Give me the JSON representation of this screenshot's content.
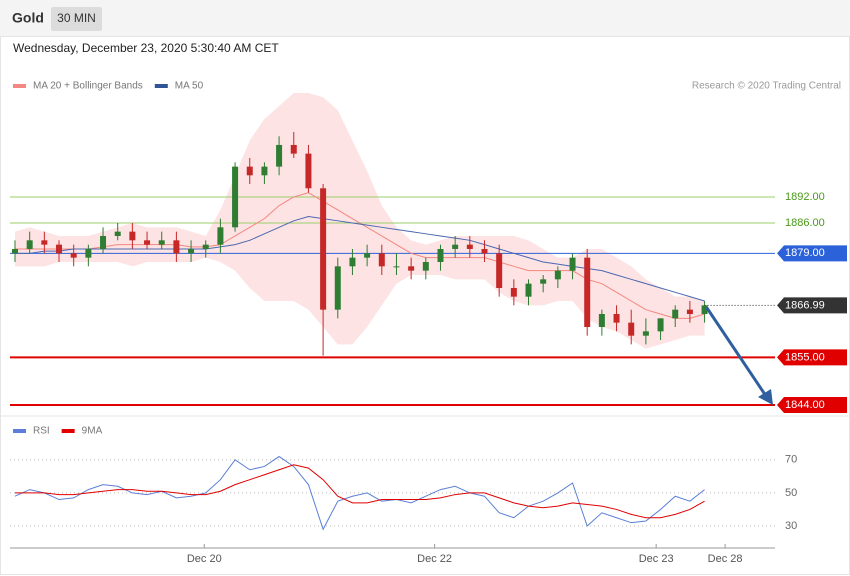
{
  "header": {
    "title": "Gold",
    "interval": "30 MIN"
  },
  "timestamp": "Wednesday, December 23, 2020 5:30:40 AM CET",
  "source": "Research © 2020 Trading Central",
  "chart_data": [
    {
      "type": "candlestick",
      "legend": [
        {
          "name": "MA 20 + Bollinger Bands",
          "color": "#f4877f"
        },
        {
          "name": "MA 50",
          "color": "#2f5597"
        }
      ],
      "open": [
        1879,
        1880,
        1882,
        1881,
        1879,
        1878,
        1880,
        1883,
        1884,
        1882,
        1881,
        1882,
        1879,
        1880,
        1881,
        1885,
        1899,
        1897,
        1899,
        1904,
        1902,
        1894,
        1866,
        1876,
        1878,
        1879,
        1876,
        1876,
        1875,
        1877,
        1880,
        1881,
        1880,
        1879,
        1871,
        1869,
        1872,
        1873,
        1875,
        1878,
        1862,
        1865,
        1863,
        1860,
        1861,
        1864,
        1866,
        1865
      ],
      "high": [
        1882,
        1884,
        1884,
        1882,
        1881,
        1881,
        1885,
        1886,
        1886,
        1884,
        1884,
        1884,
        1882,
        1882,
        1887,
        1900,
        1901,
        1900,
        1906,
        1907,
        1904,
        1895,
        1878,
        1880,
        1881,
        1881,
        1879,
        1878,
        1878,
        1881,
        1883,
        1883,
        1882,
        1881,
        1873,
        1873,
        1874,
        1876,
        1879,
        1880,
        1866,
        1867,
        1866,
        1864,
        1864,
        1867,
        1868,
        1868
      ],
      "low": [
        1877,
        1879,
        1879,
        1877,
        1876,
        1876,
        1879,
        1882,
        1880,
        1880,
        1880,
        1877,
        1877,
        1878,
        1879,
        1884,
        1895,
        1895,
        1897,
        1901,
        1893,
        1855.4,
        1864,
        1874,
        1876,
        1874,
        1874,
        1873,
        1873,
        1875,
        1878,
        1878,
        1877,
        1869,
        1867,
        1867,
        1870,
        1871,
        1873,
        1860,
        1860,
        1861,
        1858,
        1858,
        1859,
        1862,
        1863,
        1863
      ],
      "close": [
        1880,
        1882,
        1881,
        1879,
        1878,
        1880,
        1883,
        1884,
        1882,
        1881,
        1882,
        1879,
        1880,
        1881,
        1885,
        1899,
        1897,
        1899,
        1904,
        1902,
        1894,
        1866,
        1876,
        1878,
        1879,
        1876,
        1876,
        1875,
        1877,
        1880,
        1881,
        1880,
        1879,
        1871,
        1869,
        1872,
        1873,
        1875,
        1878,
        1862,
        1865,
        1863,
        1860,
        1861,
        1864,
        1866,
        1865,
        1867
      ],
      "ma20": [
        1880,
        1880,
        1880,
        1880,
        1880,
        1880,
        1880.5,
        1881,
        1881,
        1881,
        1881,
        1881,
        1880.5,
        1880.5,
        1881,
        1883,
        1885,
        1887,
        1890,
        1892,
        1893,
        1891,
        1889,
        1887,
        1885,
        1883,
        1881,
        1879,
        1878,
        1878,
        1878,
        1878,
        1878,
        1877,
        1876,
        1875,
        1875,
        1875,
        1875,
        1873,
        1872,
        1870,
        1868,
        1866,
        1865,
        1864,
        1864,
        1865
      ],
      "bb_upper": [
        1884,
        1885,
        1884,
        1883,
        1883,
        1883,
        1884,
        1885,
        1886,
        1885,
        1885,
        1885,
        1884,
        1883,
        1889,
        1897,
        1905,
        1910,
        1913,
        1916,
        1916,
        1915,
        1912,
        1905,
        1898,
        1890,
        1885,
        1882,
        1881,
        1882,
        1883,
        1883,
        1883,
        1883,
        1883,
        1882,
        1880,
        1878,
        1878,
        1880,
        1880,
        1878,
        1876,
        1873,
        1871,
        1869,
        1869,
        1868
      ],
      "bb_lower": [
        1876,
        1876,
        1876,
        1877,
        1877,
        1877,
        1877,
        1877,
        1876,
        1877,
        1877,
        1877,
        1877,
        1878,
        1877,
        1875,
        1871,
        1868,
        1868,
        1868,
        1866,
        1862,
        1858,
        1858,
        1862,
        1867,
        1872,
        1874,
        1874,
        1874,
        1873,
        1873,
        1873,
        1870,
        1868,
        1867,
        1867,
        1868,
        1868,
        1864,
        1862,
        1861,
        1859,
        1857,
        1858,
        1859,
        1860,
        1860
      ],
      "ma50": [
        1879,
        1879,
        1879.5,
        1879.5,
        1880,
        1880,
        1880,
        1880,
        1880,
        1880,
        1880,
        1880,
        1880,
        1880,
        1880.5,
        1881,
        1882,
        1883.5,
        1885,
        1886.5,
        1887.5,
        1887,
        1886.5,
        1886,
        1885.5,
        1885,
        1884.5,
        1884,
        1883.5,
        1883,
        1882.5,
        1882,
        1881,
        1880,
        1879,
        1878,
        1877,
        1876.5,
        1876,
        1875.5,
        1875,
        1874,
        1873,
        1872,
        1871,
        1870,
        1869,
        1868
      ],
      "levels": [
        {
          "value": 1892,
          "label": "1892.00",
          "color": "#9acd6a",
          "boxed": false
        },
        {
          "value": 1886,
          "label": "1886.00",
          "color": "#9acd6a",
          "boxed": false
        },
        {
          "value": 1879,
          "label": "1879.00",
          "color": "#2b62d9",
          "boxed": true
        },
        {
          "value": 1855,
          "label": "1855.00",
          "color": "#e00000",
          "boxed": true
        },
        {
          "value": 1844,
          "label": "1844.00",
          "color": "#e00000",
          "boxed": true
        }
      ],
      "last": {
        "value": 1866.99,
        "label": "1866.99",
        "color": "#333333"
      },
      "xlim": [
        0,
        51.8
      ],
      "ylim": [
        1841.7,
        1923.6
      ]
    },
    {
      "type": "line",
      "series": [
        {
          "name": "RSI",
          "color": "#5b7fd6",
          "values": [
            48,
            52,
            50,
            46,
            47,
            52,
            55,
            54,
            50,
            49,
            51,
            47,
            48,
            50,
            58,
            70,
            64,
            66,
            72,
            66,
            55,
            28,
            45,
            48,
            50,
            45,
            46,
            44,
            48,
            52,
            54,
            50,
            48,
            38,
            35,
            42,
            45,
            50,
            56,
            30,
            38,
            35,
            32,
            33,
            40,
            48,
            45,
            52
          ]
        },
        {
          "name": "9MA",
          "color": "#e00000",
          "values": [
            50,
            50,
            50,
            49,
            49,
            50,
            51,
            52,
            52,
            51,
            51,
            50,
            49,
            49,
            51,
            55,
            58,
            61,
            64,
            67,
            65,
            58,
            48,
            44,
            44,
            46,
            46,
            46,
            46,
            47,
            49,
            50,
            50,
            47,
            44,
            42,
            41,
            42,
            44,
            43,
            42,
            40,
            37,
            35,
            35,
            37,
            40,
            45
          ]
        }
      ],
      "xlim": [
        0,
        51.8
      ],
      "ylim": [
        18.5,
        82
      ],
      "yticks": [
        70,
        50,
        30
      ],
      "xticks": [
        {
          "value": 12.9,
          "label": "Dec 20"
        },
        {
          "value": 28.6,
          "label": "Dec 22"
        },
        {
          "value": 43.7,
          "label": "Dec 23"
        },
        {
          "value": 48.4,
          "label": "Dec 28"
        }
      ]
    }
  ]
}
